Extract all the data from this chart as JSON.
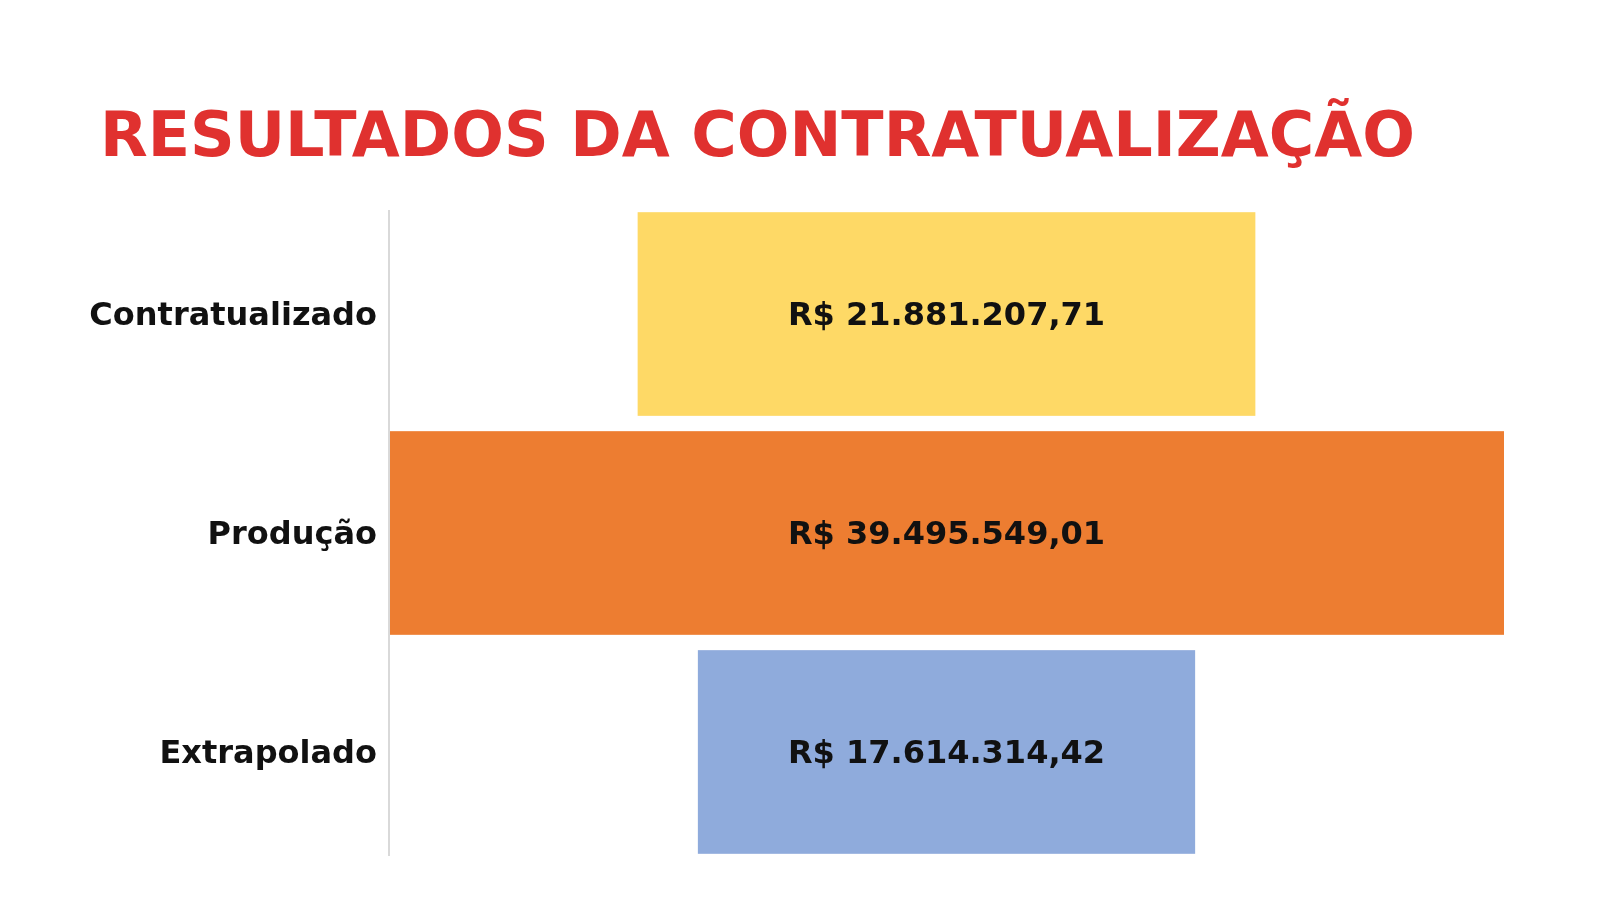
{
  "chart_data": {
    "type": "other",
    "title": "RESULTADOS DA CONTRATUALIZAÇÃO",
    "categories": [
      "Contratualizado",
      "Produção",
      "Extrapolado"
    ],
    "values": [
      21881207.71,
      39495549.01,
      17614314.42
    ],
    "colors": [
      "#fed966",
      "#ed7d31",
      "#8fabdc"
    ],
    "value_labels": [
      "R$ 21.881.207,71",
      "R$ 39.495.549,01",
      "R$ 17.614.314,42"
    ]
  }
}
